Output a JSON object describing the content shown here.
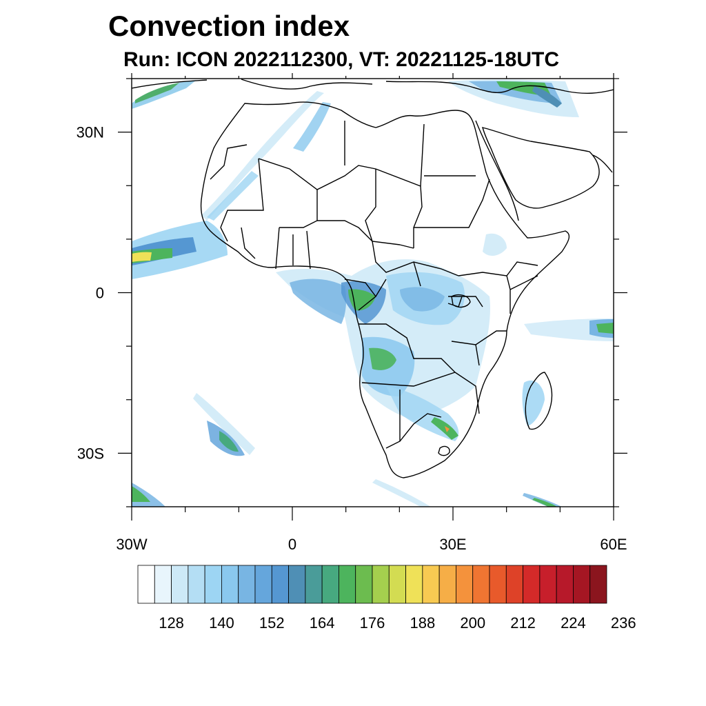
{
  "title": "Convection index",
  "subtitle": "Run: ICON 2022112300,  VT: 20221125-18UTC",
  "map": {
    "region": "Africa",
    "lon_range": [
      -30,
      60
    ],
    "lat_range": [
      -40,
      40
    ],
    "lat_tick_labels": [
      {
        "lat": 30,
        "text": "30N"
      },
      {
        "lat": 0,
        "text": "0"
      },
      {
        "lat": -30,
        "text": "30S"
      }
    ],
    "lon_tick_labels": [
      {
        "lon": -30,
        "text": "30W"
      },
      {
        "lon": 0,
        "text": "0"
      },
      {
        "lon": 30,
        "text": "30E"
      },
      {
        "lon": 60,
        "text": "60E"
      }
    ]
  },
  "colorbar": {
    "colors": [
      "#ffffff",
      "#e8f5fc",
      "#cde9f7",
      "#b4def4",
      "#9dd5f3",
      "#8ac8ee",
      "#78b5e3",
      "#65a6dc",
      "#5597d2",
      "#4f8fb5",
      "#4a9c99",
      "#47a97f",
      "#4db45d",
      "#6cbc4f",
      "#a5cf4e",
      "#d3dc52",
      "#efe158",
      "#f8ca52",
      "#f6ae47",
      "#f4923c",
      "#ef7532",
      "#e85a2b",
      "#de4228",
      "#d42a29",
      "#c71f2b",
      "#b7192a",
      "#a51623",
      "#8b151e"
    ],
    "tick_labels": [
      "128",
      "140",
      "152",
      "164",
      "176",
      "188",
      "200",
      "212",
      "224",
      "236"
    ]
  }
}
